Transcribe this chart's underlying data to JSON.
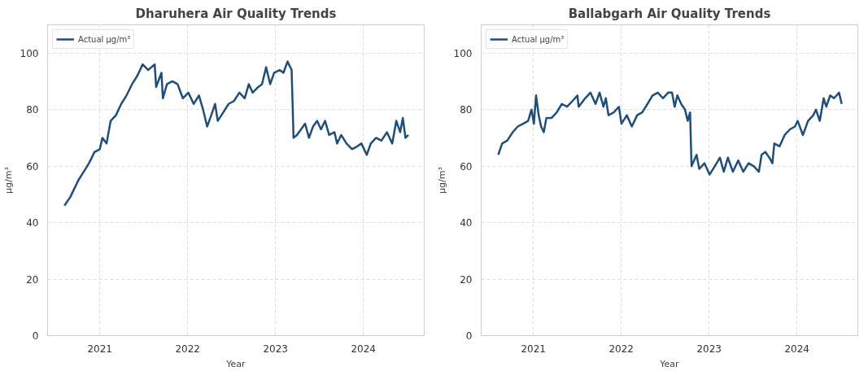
{
  "chart_data": [
    {
      "type": "line",
      "title": "Dharuhera Air Quality Trends",
      "xlabel": "Year",
      "ylabel": "μg/m³",
      "legend": "top left",
      "grid": true,
      "line_style": "solid",
      "xlim": [
        "2020-05-29",
        "2024-09-10"
      ],
      "ylim": [
        0,
        110
      ],
      "xticks": [
        {
          "value": "2021-01-01",
          "label": "2021"
        },
        {
          "value": "2022-01-01",
          "label": "2022"
        },
        {
          "value": "2023-01-01",
          "label": "2023"
        },
        {
          "value": "2024-01-01",
          "label": "2024"
        }
      ],
      "yticks": [
        0,
        20,
        40,
        60,
        80,
        100
      ],
      "x": [
        "2020-08-07",
        "2020-08-15",
        "2020-08-31",
        "2020-09-17",
        "2020-10-04",
        "2020-10-26",
        "2020-11-17",
        "2020-12-10",
        "2021-01-01",
        "2021-01-12",
        "2021-01-29",
        "2021-02-15",
        "2021-03-09",
        "2021-03-31",
        "2021-04-22",
        "2021-05-15",
        "2021-06-06",
        "2021-06-28",
        "2021-07-21",
        "2021-08-17",
        "2021-08-23",
        "2021-09-14",
        "2021-09-20",
        "2021-10-07",
        "2021-10-29",
        "2021-11-20",
        "2021-12-12",
        "2022-01-04",
        "2022-01-26",
        "2022-02-17",
        "2022-03-06",
        "2022-03-23",
        "2022-04-09",
        "2022-04-25",
        "2022-05-06",
        "2022-05-29",
        "2022-06-20",
        "2022-07-12",
        "2022-08-04",
        "2022-08-26",
        "2022-09-12",
        "2022-09-28",
        "2022-10-21",
        "2022-11-06",
        "2022-11-23",
        "2022-12-10",
        "2022-12-26",
        "2023-01-18",
        "2023-02-03",
        "2023-02-20",
        "2023-03-09",
        "2023-03-17",
        "2023-03-31",
        "2023-04-17",
        "2023-05-04",
        "2023-05-20",
        "2023-06-06",
        "2023-06-23",
        "2023-07-09",
        "2023-07-26",
        "2023-08-12",
        "2023-09-03",
        "2023-09-14",
        "2023-10-01",
        "2023-10-23",
        "2023-11-15",
        "2023-12-07",
        "2023-12-24",
        "2024-01-15",
        "2024-02-01",
        "2024-02-23",
        "2024-03-16",
        "2024-04-08",
        "2024-04-30",
        "2024-05-17",
        "2024-06-02",
        "2024-06-13",
        "2024-06-24",
        "2024-07-06"
      ],
      "series": [
        {
          "name": "Actual μg/m³",
          "color": "#1f4e79",
          "values": [
            46,
            47,
            49,
            52,
            55,
            58,
            61,
            65,
            66,
            70,
            68,
            76,
            78,
            82,
            85,
            89,
            92,
            96,
            94,
            96,
            88,
            93,
            84,
            89,
            90,
            89,
            84,
            86,
            82,
            85,
            80,
            74,
            78,
            82,
            76,
            79,
            82,
            83,
            86,
            84,
            89,
            86,
            88,
            89,
            95,
            89,
            93,
            94,
            93,
            97,
            94,
            70,
            71,
            73,
            75,
            70,
            74,
            76,
            73,
            76,
            71,
            72,
            68,
            71,
            68,
            66,
            67,
            68,
            64,
            68,
            70,
            69,
            72,
            68,
            76,
            72,
            77,
            70,
            71
          ]
        }
      ]
    },
    {
      "type": "line",
      "title": "Ballabgarh Air Quality Trends",
      "xlabel": "Year",
      "ylabel": "μg/m³",
      "legend": "top left",
      "grid": true,
      "line_style": "solid",
      "xlim": [
        "2020-05-29",
        "2024-09-10"
      ],
      "ylim": [
        0,
        110
      ],
      "xticks": [
        {
          "value": "2021-01-01",
          "label": "2021"
        },
        {
          "value": "2022-01-01",
          "label": "2022"
        },
        {
          "value": "2023-01-01",
          "label": "2023"
        },
        {
          "value": "2024-01-01",
          "label": "2024"
        }
      ],
      "yticks": [
        0,
        20,
        40,
        60,
        80,
        100
      ],
      "x": [
        "2020-08-08",
        "2020-08-24",
        "2020-09-14",
        "2020-10-07",
        "2020-10-28",
        "2020-11-19",
        "2020-12-10",
        "2020-12-24",
        "2021-01-03",
        "2021-01-12",
        "2021-01-23",
        "2021-02-02",
        "2021-02-13",
        "2021-02-24",
        "2021-03-17",
        "2021-04-08",
        "2021-04-29",
        "2021-05-21",
        "2021-06-12",
        "2021-07-03",
        "2021-07-08",
        "2021-08-04",
        "2021-08-26",
        "2021-09-16",
        "2021-10-03",
        "2021-10-19",
        "2021-10-29",
        "2021-11-09",
        "2021-12-01",
        "2021-12-22",
        "2022-01-02",
        "2022-01-24",
        "2022-02-14",
        "2022-03-08",
        "2022-03-29",
        "2022-04-20",
        "2022-05-11",
        "2022-06-02",
        "2022-06-23",
        "2022-07-15",
        "2022-07-31",
        "2022-08-11",
        "2022-08-22",
        "2022-09-07",
        "2022-09-23",
        "2022-10-04",
        "2022-10-14",
        "2022-10-20",
        "2022-11-10",
        "2022-11-21",
        "2022-12-13",
        "2023-01-03",
        "2023-01-25",
        "2023-02-15",
        "2023-03-03",
        "2023-03-20",
        "2023-04-10",
        "2023-05-02",
        "2023-05-23",
        "2023-06-14",
        "2023-07-05",
        "2023-07-27",
        "2023-08-07",
        "2023-08-23",
        "2023-09-08",
        "2023-09-21",
        "2023-09-29",
        "2023-10-21",
        "2023-11-11",
        "2023-12-03",
        "2023-12-24",
        "2024-01-04",
        "2024-01-26",
        "2024-02-16",
        "2024-03-09",
        "2024-03-20",
        "2024-04-05",
        "2024-04-21",
        "2024-05-02",
        "2024-05-18",
        "2024-06-03",
        "2024-06-24",
        "2024-07-05"
      ],
      "series": [
        {
          "name": "Actual μg/m³",
          "color": "#1f4e79",
          "values": [
            64,
            68,
            69,
            72,
            74,
            75,
            76,
            80,
            75,
            85,
            78,
            74,
            72,
            77,
            77,
            79,
            82,
            81,
            83,
            85,
            81,
            84,
            86,
            82,
            86,
            81,
            84,
            78,
            79,
            81,
            75,
            78,
            74,
            78,
            79,
            82,
            85,
            86,
            84,
            86,
            86,
            81,
            85,
            82,
            80,
            76,
            79,
            60,
            64,
            59,
            61,
            57,
            60,
            63,
            58,
            63,
            58,
            62,
            58,
            61,
            60,
            58,
            64,
            65,
            63,
            61,
            68,
            67,
            71,
            73,
            74,
            76,
            71,
            76,
            78,
            80,
            76,
            84,
            81,
            85,
            84,
            86,
            82
          ]
        }
      ]
    }
  ]
}
